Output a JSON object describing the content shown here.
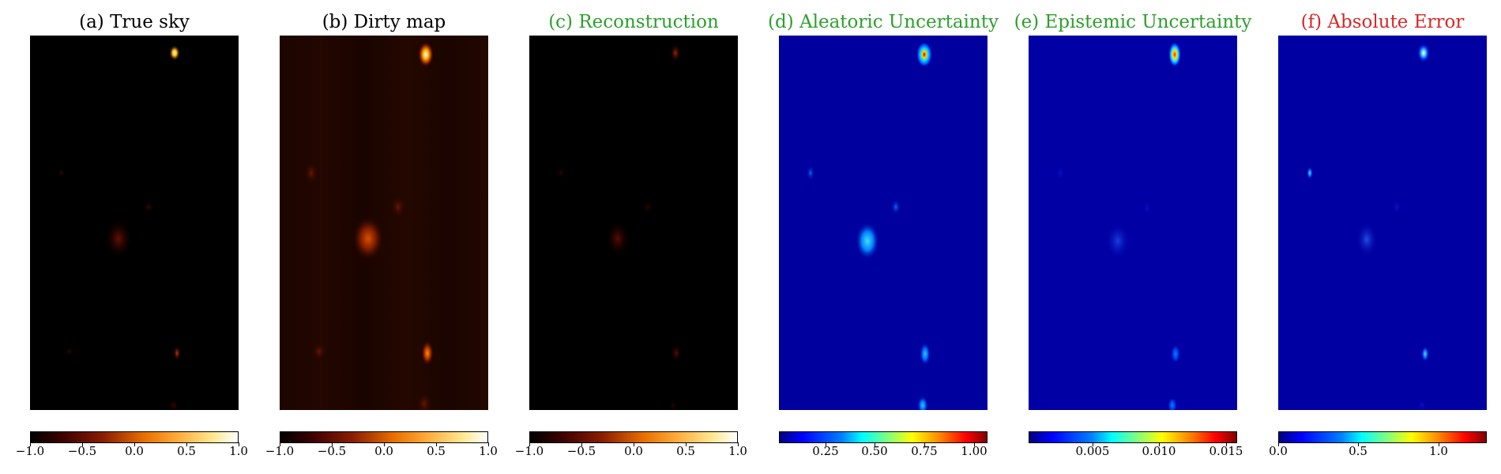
{
  "panels": [
    {
      "title": "(a) True sky",
      "title_color": "#000000",
      "colormap": "afmhot",
      "colorbar_ticks": [
        "−1.0",
        "−0.5",
        "0.0",
        "0.5",
        "1.0"
      ]
    },
    {
      "title": "(b) Dirty map",
      "title_color": "#000000",
      "colormap": "afmhot",
      "colorbar_ticks": [
        "−1.0",
        "−0.5",
        "0.0",
        "0.5",
        "1.0"
      ]
    },
    {
      "title": "(c) Reconstruction",
      "title_color": "#2ca02c",
      "colormap": "afmhot",
      "colorbar_ticks": [
        "−1.0",
        "−0.5",
        "0.0",
        "0.5",
        "1.0"
      ]
    },
    {
      "title": "(d) Aleatoric Uncertainty",
      "title_color": "#2ca02c",
      "colormap": "jet",
      "colorbar_ticks": [
        "0.25",
        "0.50",
        "0.75",
        "1.00"
      ]
    },
    {
      "title": "(e) Epistemic Uncertainty",
      "title_color": "#2ca02c",
      "colormap": "jet",
      "colorbar_ticks": [
        "0.005",
        "0.010",
        "0.015"
      ]
    },
    {
      "title": "(f) Absolute Error",
      "title_color": "#d62728",
      "colormap": "jet",
      "colorbar_ticks": [
        "0.0",
        "0.5",
        "1.0"
      ]
    }
  ]
}
